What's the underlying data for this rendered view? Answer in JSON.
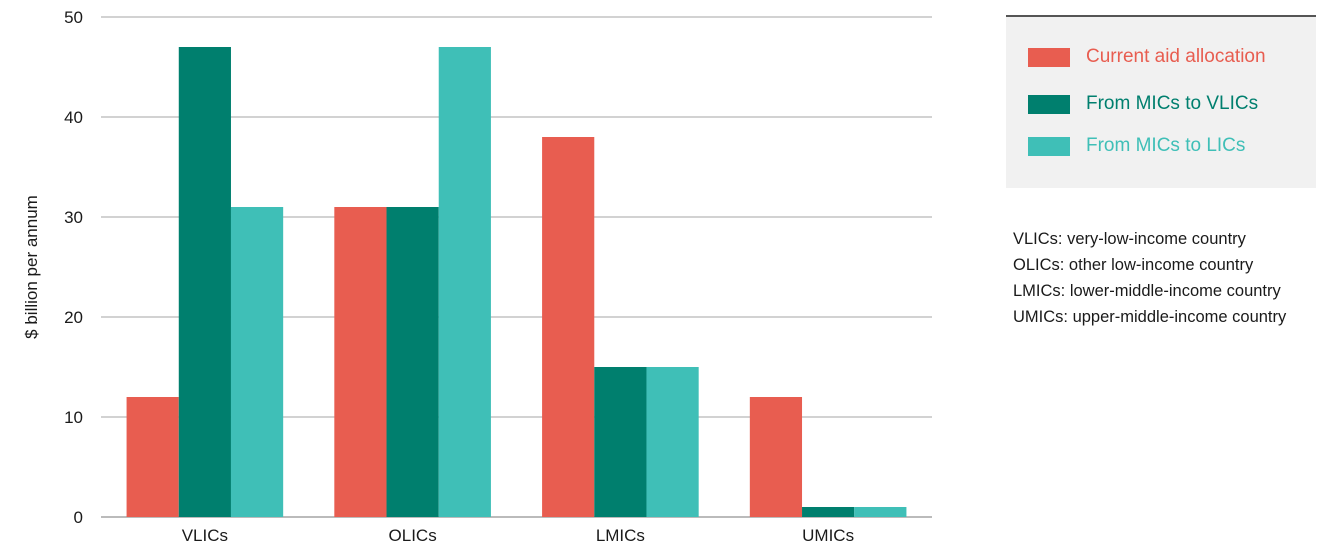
{
  "chart_data": {
    "type": "bar",
    "title": "",
    "xlabel": "",
    "ylabel": "$ billion per annum",
    "ylim": [
      0,
      50
    ],
    "yticks": [
      0,
      10,
      20,
      30,
      40,
      50
    ],
    "grid": true,
    "legend_position": "top-right",
    "categories": [
      "VLICs",
      "OLICs",
      "LMICs",
      "UMICs"
    ],
    "series": [
      {
        "name": "Current aid allocation",
        "color": "#e85d50",
        "values": [
          12,
          31,
          38,
          12
        ]
      },
      {
        "name": "From MICs to VLICs",
        "color": "#007f6e",
        "values": [
          47,
          31,
          15,
          1
        ]
      },
      {
        "name": "From MICs to LICs",
        "color": "#3fbfb7",
        "values": [
          31,
          47,
          15,
          1
        ]
      }
    ]
  },
  "notes": [
    "VLICs: very-low-income country",
    "OLICs: other low-income country",
    "LMICs: lower-middle-income country",
    "UMICs: upper-middle-income country"
  ]
}
